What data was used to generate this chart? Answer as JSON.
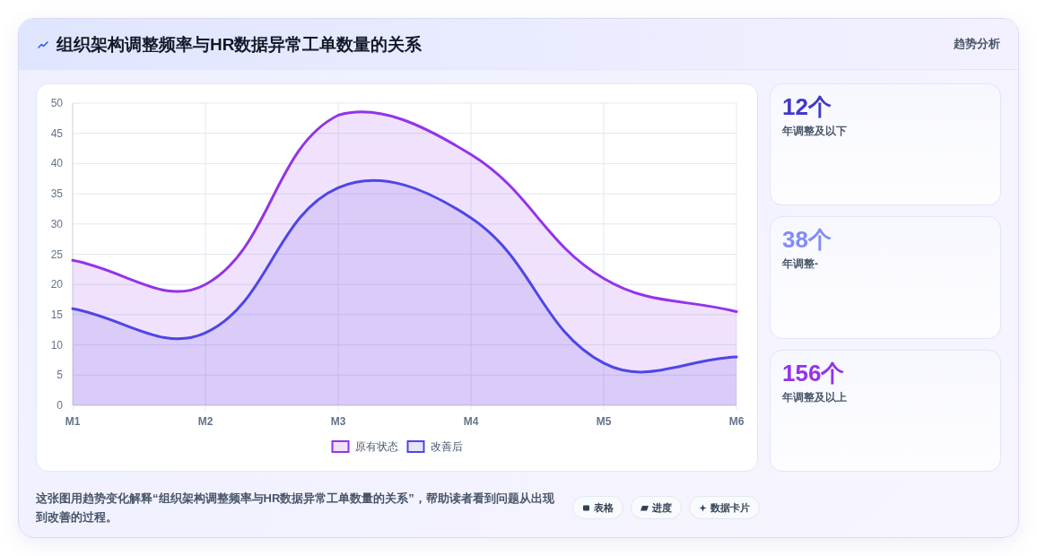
{
  "chart_data": [
    {
      "type": "area",
      "title": "组织架构调整频率与HR数据异常工单数量的关系",
      "categories": [
        "M1",
        "M2",
        "M3",
        "M4",
        "M5",
        "M6"
      ],
      "series": [
        {
          "name": "原有状态",
          "color": "#9333ea",
          "values": [
            24,
            20,
            48,
            41.5,
            21,
            15.5
          ]
        },
        {
          "name": "改善后",
          "color": "#4f46e5",
          "values": [
            16,
            12,
            36,
            31,
            7,
            8
          ]
        }
      ],
      "ylim": [
        0,
        50
      ],
      "yticks": [
        0,
        5,
        10,
        15,
        20,
        25,
        30,
        35,
        40,
        45,
        50
      ],
      "grid": true,
      "legend": "bottom",
      "annotations": [
        "趋势分析",
        "这张图用趋势变化解释“组织架构调整频率与HR数据异常工单数量的关系”，帮助读者看到问题从出现到改善的过程。",
        "表格",
        "进度",
        "数据卡片"
      ]
    },
    {
      "type": "other",
      "annotations": [
        "12个",
        "年调整及以下",
        "38个",
        "年调整-",
        "156个",
        "年调整及以上"
      ]
    }
  ]
}
